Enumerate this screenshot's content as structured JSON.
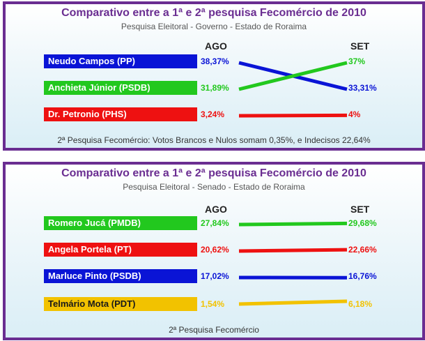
{
  "charts": [
    {
      "title": "Comparativo entre a 1ª e 2ª pesquisa Fecomércio de 2010",
      "subtitle": "Pesquisa Eleitoral - Governo - Estado de Roraima",
      "col_left": "AGO",
      "col_right": "SET",
      "note": "2ª Pesquisa Fecomércio: Votos Brancos e Nulos somam    0,35%, e Indecisos 22,64%",
      "candidates": [
        {
          "name": "Neudo Campos (PP)",
          "ago_label": "38,37%",
          "set_label": "33,31%",
          "color": "#0a14d6"
        },
        {
          "name": "Anchieta Júnior (PSDB)",
          "ago_label": "31,89%",
          "set_label": "37%",
          "color": "#22c81e"
        },
        {
          "name": "Dr. Petronio (PHS)",
          "ago_label": "3,24%",
          "set_label": "4%",
          "color": "#ee1111"
        }
      ]
    },
    {
      "title": "Comparativo entre a 1ª e 2ª pesquisa Fecomércio de 2010",
      "subtitle": "Pesquisa Eleitoral - Senado - Estado de Roraima",
      "col_left": "AGO",
      "col_right": "SET",
      "note": "2ª Pesquisa Fecomércio",
      "candidates": [
        {
          "name": "Romero Jucá (PMDB)",
          "ago_label": "27,84%",
          "set_label": "29,68%",
          "color": "#22c81e"
        },
        {
          "name": "Angela Portela (PT)",
          "ago_label": "20,62%",
          "set_label": "22,66%",
          "color": "#ee1111"
        },
        {
          "name": "Marluce Pinto (PSDB)",
          "ago_label": "17,02%",
          "set_label": "16,76%",
          "color": "#0a14d6"
        },
        {
          "name": "Telmário Mota (PDT)",
          "ago_label": "1,54%",
          "set_label": "6,18%",
          "color": "#f2c200"
        }
      ]
    }
  ],
  "chart_data": [
    {
      "type": "line",
      "title": "Comparativo entre a 1ª e 2ª pesquisa Fecomércio de 2010",
      "subtitle": "Pesquisa Eleitoral - Governo - Estado de Roraima",
      "categories": [
        "AGO",
        "SET"
      ],
      "series": [
        {
          "name": "Neudo Campos (PP)",
          "values": [
            38.37,
            33.31
          ]
        },
        {
          "name": "Anchieta Júnior (PSDB)",
          "values": [
            31.89,
            37
          ]
        },
        {
          "name": "Dr. Petronio (PHS)",
          "values": [
            3.24,
            4
          ]
        }
      ]
    },
    {
      "type": "line",
      "title": "Comparativo entre a 1ª e 2ª pesquisa Fecomércio de 2010",
      "subtitle": "Pesquisa Eleitoral - Senado - Estado de Roraima",
      "categories": [
        "AGO",
        "SET"
      ],
      "series": [
        {
          "name": "Romero Jucá (PMDB)",
          "values": [
            27.84,
            29.68
          ]
        },
        {
          "name": "Angela Portela (PT)",
          "values": [
            20.62,
            22.66
          ]
        },
        {
          "name": "Marluce Pinto (PSDB)",
          "values": [
            17.02,
            16.76
          ]
        },
        {
          "name": "Telmário Mota (PDT)",
          "values": [
            1.54,
            6.18
          ]
        }
      ]
    }
  ]
}
